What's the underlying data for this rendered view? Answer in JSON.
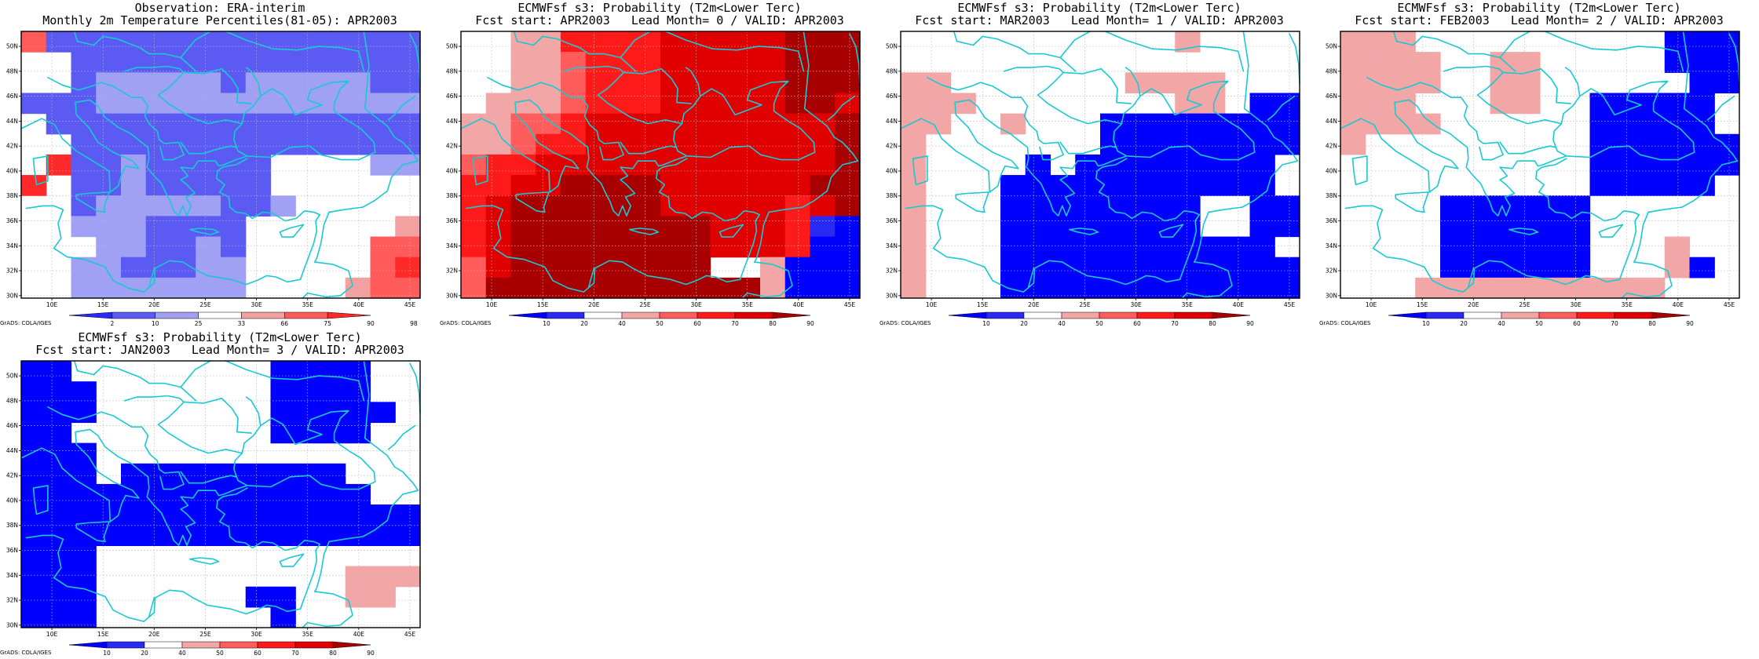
{
  "colors": {
    "obs": [
      "#2929ff",
      "#5b5bf3",
      "#a0a0f5",
      "#ffffff",
      "#f5a0a0",
      "#ff5b5b",
      "#ff2929"
    ],
    "prob": [
      "#0000ff",
      "#2a2af5",
      "#ffffff",
      "#f3a6a6",
      "#ff5c5c",
      "#ff1a1a",
      "#e00000",
      "#a80000"
    ],
    "coast": "#19c9d2"
  },
  "map": {
    "lon_ticks": [
      "10E",
      "15E",
      "20E",
      "25E",
      "30E",
      "35E",
      "40E",
      "45E"
    ],
    "lat_ticks": [
      "30N",
      "32N",
      "34N",
      "36N",
      "38N",
      "40N",
      "42N",
      "44N",
      "46N",
      "48N",
      "50N"
    ],
    "lon_range": [
      7,
      46
    ],
    "lat_range": [
      29.8,
      51.2
    ]
  },
  "panels": [
    {
      "id": "obs",
      "title1": "Observation: ERA-interim",
      "title2": "Monthly 2m Temperature Percentiles(81-05): APR2003",
      "footer": "GrADS: COLA/IGES",
      "scale": "obs",
      "cb_labels": [
        "2",
        "10",
        "25",
        "33",
        "66",
        "75",
        "90",
        "98"
      ]
    },
    {
      "id": "lead0",
      "title1": "ECMWFsf s3: Probability (T2m<Lower Terc)",
      "title2": "Fcst start: APR2003   Lead Month= 0 / VALID: APR2003",
      "footer": "GrADS: COLA/IGES",
      "scale": "prob",
      "cb_labels": [
        "10",
        "20",
        "40",
        "50",
        "60",
        "70",
        "80",
        "90"
      ]
    },
    {
      "id": "lead1",
      "title1": "ECMWFsf s3: Probability (T2m<Lower Terc)",
      "title2": "Fcst start: MAR2003   Lead Month= 1 / VALID: APR2003",
      "footer": "GrADS: COLA/IGES",
      "scale": "prob",
      "cb_labels": [
        "10",
        "20",
        "40",
        "50",
        "60",
        "70",
        "80",
        "90"
      ]
    },
    {
      "id": "lead2",
      "title1": "ECMWFsf s3: Probability (T2m<Lower Terc)",
      "title2": "Fcst start: FEB2003   Lead Month= 2 / VALID: APR2003",
      "footer": "GrADS: COLA/IGES",
      "scale": "prob",
      "cb_labels": [
        "10",
        "20",
        "40",
        "50",
        "60",
        "70",
        "80",
        "90"
      ]
    },
    {
      "id": "lead3",
      "title1": "ECMWFsf s3: Probability (T2m<Lower Terc)",
      "title2": "Fcst start: JAN2003   Lead Month= 3 / VALID: APR2003",
      "footer": "GrADS: COLA/IGES",
      "scale": "prob",
      "cb_labels": [
        "10",
        "20",
        "40",
        "50",
        "60",
        "70",
        "80",
        "90"
      ]
    }
  ],
  "grids": {
    "obs": [
      "5111111111111111",
      "3311111111111111",
      "3312222212222211",
      "1112222222222222",
      "3111111111111111",
      "3311111111111111",
      "3611211111333322",
      "6311211111333333",
      "3312222211233333",
      "3322211113333334",
      "3332211213333355",
      "3322111223333356",
      "3322222223333455"
    ],
    "lead0": [
      "2233555566666777",
      "2233455566666777",
      "2233455566666777",
      "2333455566666776",
      "3344566666666667",
      "3345566666666667",
      "4556666666666667",
      "5566777766666677",
      "5677777766666567",
      "5677777777666510",
      "5677777777666500",
      "4677777777223000",
      "4777777777773000"
    ],
    "lead1": [
      "2222222222232222",
      "2222222222222222",
      "3322222223333222",
      "3332222222233200",
      "3322322200000000",
      "3222222200000000",
      "3222202000000002",
      "3222000000000002",
      "3222000000002200",
      "3222000000002200",
      "3222000000000002",
      "3222000000000000",
      "3222000000000000"
    ],
    "lead2": [
      "3332222222222000",
      "3333223322222000",
      "3333223322222200",
      "3332223322000002",
      "3333222222000002",
      "3222222222000000",
      "2222222222000000",
      "2222222222000002",
      "2222000000222222",
      "2222000000222222",
      "2222000000222322",
      "2222000000222302",
      "2223333333333222"
    ],
    "lead3": [
      "0022222222000022",
      "0002222222000022",
      "0002222222000002",
      "0022222222000022",
      "0002222222222222",
      "0002000000000222",
      "0000000000000022",
      "0000000000000000",
      "0000000000000000",
      "0002222222222222",
      "0002222222222333",
      "0002222220022332",
      "0002222222022222"
    ]
  }
}
